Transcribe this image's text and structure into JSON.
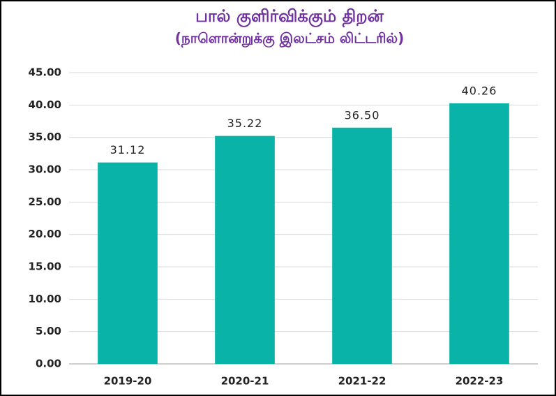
{
  "chart_data": {
    "type": "bar",
    "title": "பால் குளிர்விக்கும் திறன்",
    "subtitle": "(நாளொன்றுக்கு இலட்சம் லிட்டரில்)",
    "categories": [
      "2019-20",
      "2020-21",
      "2021-22",
      "2022-23"
    ],
    "values": [
      31.12,
      35.22,
      36.5,
      40.26
    ],
    "value_labels": [
      "31.12",
      "35.22",
      "36.50",
      "40.26"
    ],
    "color": "#0ab3a8",
    "ylim": [
      0,
      45
    ],
    "yticks": [
      {
        "value": 0,
        "label": "0.00"
      },
      {
        "value": 5,
        "label": "5.00"
      },
      {
        "value": 10,
        "label": "10.00"
      },
      {
        "value": 15,
        "label": "15.00"
      },
      {
        "value": 20,
        "label": "20.00"
      },
      {
        "value": 25,
        "label": "25.00"
      },
      {
        "value": 30,
        "label": "30.00"
      },
      {
        "value": 35,
        "label": "35.00"
      },
      {
        "value": 40,
        "label": "40.00"
      },
      {
        "value": 45,
        "label": "45.00"
      }
    ],
    "grid": true
  }
}
